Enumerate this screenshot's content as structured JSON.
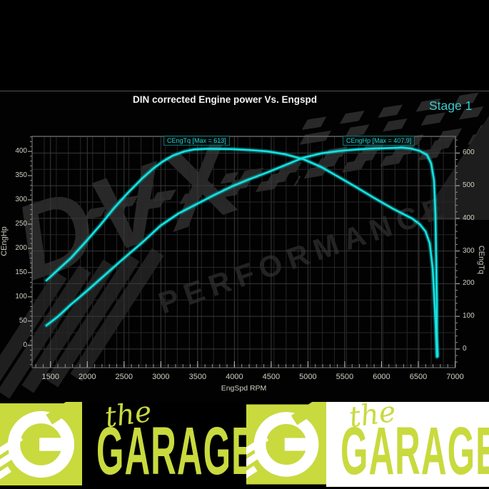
{
  "header": {
    "title": "DIN corrected Engine power Vs. Engspd",
    "stage": "Stage 1"
  },
  "watermark": {
    "line1": "DVX",
    "line2": "PERFORMANCE"
  },
  "colors": {
    "curve": "#17e2e2",
    "stage_text": "#3fc9cd",
    "annotation_text": "#1ad2d2",
    "lime_brand": "#c8da3e",
    "grid_minor": "#262626",
    "grid_major": "#3a3a3a",
    "plot_border": "#808080",
    "tick_label": "#cfcfc3"
  },
  "chart_data": {
    "type": "line",
    "title": "DIN corrected Engine power Vs. Engspd",
    "stage_label": "Stage 1",
    "grid": true,
    "x_axis": {
      "label": "EngSpd RPM",
      "range": [
        1250,
        7005
      ],
      "ticks": [
        1500,
        2000,
        2500,
        3000,
        3500,
        4000,
        4500,
        5000,
        5500,
        6000,
        6500,
        7000
      ]
    },
    "y_left": {
      "label": "CEngHp",
      "range": [
        -46,
        431
      ],
      "ticks": [
        0,
        50,
        100,
        150,
        200,
        250,
        300,
        350,
        400
      ]
    },
    "y_right": {
      "label": "CEngTq",
      "range": [
        -57,
        651
      ],
      "ticks": [
        0,
        100,
        200,
        300,
        400,
        500,
        600
      ]
    },
    "series": [
      {
        "name": "CEngTq",
        "axis": "right",
        "max": 613,
        "annotation": "CEngTq [Max = 613]",
        "points": [
          [
            1444,
            210
          ],
          [
            1590,
            240
          ],
          [
            1784,
            280
          ],
          [
            1978,
            328
          ],
          [
            2172,
            378
          ],
          [
            2366,
            432
          ],
          [
            2560,
            480
          ],
          [
            2754,
            524
          ],
          [
            2900,
            553
          ],
          [
            3026,
            574
          ],
          [
            3162,
            592
          ],
          [
            3317,
            605
          ],
          [
            3453,
            611
          ],
          [
            3628,
            613
          ],
          [
            3968,
            612
          ],
          [
            4210,
            609
          ],
          [
            4453,
            605
          ],
          [
            4695,
            596
          ],
          [
            4938,
            581
          ],
          [
            5181,
            557
          ],
          [
            5423,
            526
          ],
          [
            5666,
            494
          ],
          [
            5909,
            461
          ],
          [
            6151,
            430
          ],
          [
            6297,
            413
          ],
          [
            6413,
            400
          ],
          [
            6520,
            382
          ],
          [
            6598,
            360
          ],
          [
            6656,
            323
          ],
          [
            6695,
            247
          ],
          [
            6724,
            127
          ],
          [
            6743,
            39
          ],
          [
            6753,
            -24
          ]
        ]
      },
      {
        "name": "CEngHp",
        "axis": "left",
        "max": 407.9,
        "annotation": "CEngHp [Max = 407.9]",
        "points": [
          [
            1444,
            41
          ],
          [
            1590,
            58
          ],
          [
            1784,
            85
          ],
          [
            1978,
            110
          ],
          [
            2172,
            136
          ],
          [
            2366,
            162
          ],
          [
            2560,
            188
          ],
          [
            2754,
            213
          ],
          [
            2997,
            247
          ],
          [
            3240,
            272
          ],
          [
            3482,
            291
          ],
          [
            3725,
            310
          ],
          [
            3968,
            328
          ],
          [
            4210,
            343
          ],
          [
            4453,
            357
          ],
          [
            4695,
            372
          ],
          [
            4938,
            387
          ],
          [
            5181,
            396
          ],
          [
            5423,
            401
          ],
          [
            5666,
            404
          ],
          [
            5909,
            406
          ],
          [
            6151,
            407
          ],
          [
            6268,
            407.9
          ],
          [
            6394,
            406
          ],
          [
            6520,
            401
          ],
          [
            6617,
            393
          ],
          [
            6675,
            375
          ],
          [
            6714,
            340
          ],
          [
            6733,
            269
          ],
          [
            6743,
            181
          ],
          [
            6753,
            92
          ],
          [
            6753,
            19
          ],
          [
            6763,
            -22
          ]
        ]
      }
    ]
  },
  "footer": {
    "wordmarks": [
      {
        "small": "the",
        "large": "GARAGE",
        "theme": "dark"
      },
      {
        "small": "the",
        "large": "GARAGE",
        "theme": "light"
      }
    ]
  }
}
